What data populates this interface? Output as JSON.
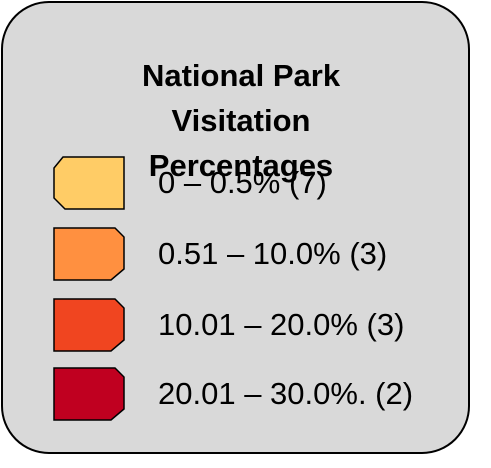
{
  "legend": {
    "title_lines": [
      "National Park",
      "Visitation",
      "Percentages"
    ],
    "items": [
      {
        "label": "0 – 0.5%  (7)",
        "color": "#ffcc66"
      },
      {
        "label": "0.51 – 10.0%  (3)",
        "color": "#ff9040"
      },
      {
        "label": "10.01 – 20.0%  (3)",
        "color": "#f04520"
      },
      {
        "label": "20.01 – 30.0%. (2)",
        "color": "#c00020"
      }
    ]
  }
}
